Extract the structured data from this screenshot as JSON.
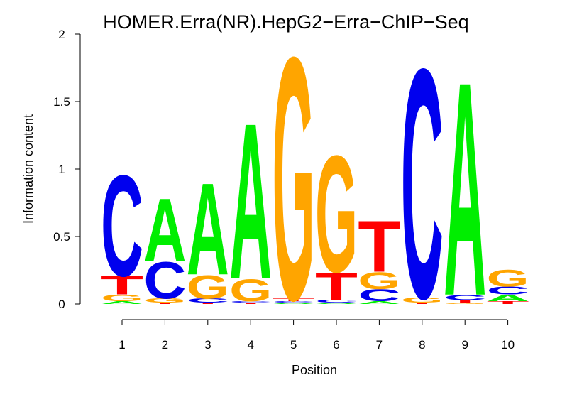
{
  "chart_data": {
    "type": "sequence-logo",
    "title": "HOMER.Erra(NR).HepG2−Erra−ChIP−Seq",
    "xlabel": "Position",
    "ylabel": "Information content",
    "ylim": [
      0,
      2
    ],
    "yticks": [
      {
        "value": 0,
        "label": "0"
      },
      {
        "value": 0.5,
        "label": "0.5"
      },
      {
        "value": 1,
        "label": "1"
      },
      {
        "value": 1.5,
        "label": "1.5"
      },
      {
        "value": 2,
        "label": "2"
      }
    ],
    "positions": [
      "1",
      "2",
      "3",
      "4",
      "5",
      "6",
      "7",
      "8",
      "9",
      "10"
    ],
    "colors": {
      "A": "#00ee00",
      "C": "#0000ee",
      "G": "#ffa500",
      "T": "#ff0000"
    },
    "columns": [
      [
        {
          "base": "A",
          "height": 0.02
        },
        {
          "base": "G",
          "height": 0.05
        },
        {
          "base": "T",
          "height": 0.14
        },
        {
          "base": "C",
          "height": 0.77
        }
      ],
      [
        {
          "base": "T",
          "height": 0.01
        },
        {
          "base": "G",
          "height": 0.03
        },
        {
          "base": "C",
          "height": 0.28
        },
        {
          "base": "A",
          "height": 0.48
        }
      ],
      [
        {
          "base": "T",
          "height": 0.01
        },
        {
          "base": "C",
          "height": 0.03
        },
        {
          "base": "G",
          "height": 0.18
        },
        {
          "base": "A",
          "height": 0.7
        }
      ],
      [
        {
          "base": "T",
          "height": 0.01
        },
        {
          "base": "C",
          "height": 0.01
        },
        {
          "base": "G",
          "height": 0.17
        },
        {
          "base": "A",
          "height": 1.19
        }
      ],
      [
        {
          "base": "A",
          "height": 0.01
        },
        {
          "base": "C",
          "height": 0.01
        },
        {
          "base": "T",
          "height": 0.02
        },
        {
          "base": "G",
          "height": 1.85
        }
      ],
      [
        {
          "base": "A",
          "height": 0.01
        },
        {
          "base": "C",
          "height": 0.02
        },
        {
          "base": "T",
          "height": 0.21
        },
        {
          "base": "G",
          "height": 0.89
        }
      ],
      [
        {
          "base": "A",
          "height": 0.02
        },
        {
          "base": "C",
          "height": 0.09
        },
        {
          "base": "G",
          "height": 0.13
        },
        {
          "base": "T",
          "height": 0.39
        }
      ],
      [
        {
          "base": "T",
          "height": 0.01
        },
        {
          "base": "G",
          "height": 0.04
        },
        {
          "base": "C",
          "height": 1.75
        }
      ],
      [
        {
          "base": "G",
          "height": 0.01
        },
        {
          "base": "T",
          "height": 0.02
        },
        {
          "base": "C",
          "height": 0.04
        },
        {
          "base": "A",
          "height": 1.63
        }
      ],
      [
        {
          "base": "T",
          "height": 0.02
        },
        {
          "base": "A",
          "height": 0.05
        },
        {
          "base": "C",
          "height": 0.06
        },
        {
          "base": "G",
          "height": 0.13
        }
      ]
    ]
  }
}
